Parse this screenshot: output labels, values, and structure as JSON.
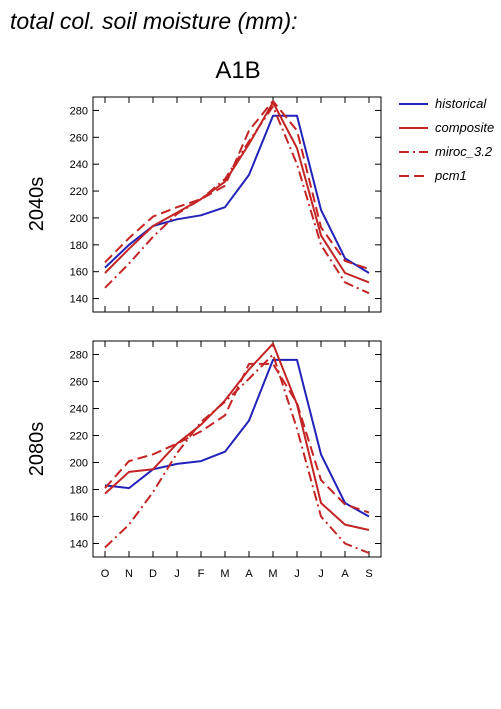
{
  "title": "total col. soil moisture (mm):",
  "scenario": "A1B",
  "colors": {
    "historical": "#2222bb",
    "composite": "#c42424",
    "miroc": "#c42424",
    "pcm1": "#c42424"
  },
  "legend": [
    {
      "key": "historical",
      "label": "historical",
      "dash": "solid"
    },
    {
      "key": "composite",
      "label": "composite",
      "dash": "solid"
    },
    {
      "key": "miroc",
      "label": "miroc_3.2",
      "dash": "dashdot"
    },
    {
      "key": "pcm1",
      "label": "pcm1",
      "dash": "dash"
    }
  ],
  "chart_data": [
    {
      "type": "line",
      "panel_label": "2040s",
      "categories": [
        "O",
        "N",
        "D",
        "J",
        "F",
        "M",
        "A",
        "M",
        "J",
        "J",
        "A",
        "S"
      ],
      "yticks": [
        140,
        160,
        180,
        200,
        220,
        240,
        260,
        280
      ],
      "ylim": [
        130,
        290
      ],
      "show_x_labels": false,
      "series": [
        {
          "key": "historical",
          "name": "historical",
          "dash": "solid",
          "values": [
            163,
            180,
            194,
            199,
            202,
            208,
            232,
            276,
            276,
            206,
            170,
            159
          ]
        },
        {
          "key": "composite",
          "name": "composite",
          "dash": "solid",
          "values": [
            159,
            177,
            194,
            204,
            214,
            227,
            255,
            286,
            252,
            187,
            159,
            152
          ]
        },
        {
          "key": "miroc",
          "name": "miroc_3.2",
          "dash": "dashdot",
          "values": [
            148,
            166,
            186,
            203,
            214,
            229,
            257,
            283,
            240,
            180,
            152,
            144
          ]
        },
        {
          "key": "pcm1",
          "name": "pcm1",
          "dash": "dash",
          "values": [
            167,
            185,
            201,
            208,
            214,
            224,
            265,
            287,
            265,
            193,
            168,
            162
          ]
        }
      ]
    },
    {
      "type": "line",
      "panel_label": "2080s",
      "categories": [
        "O",
        "N",
        "D",
        "J",
        "F",
        "M",
        "A",
        "M",
        "J",
        "J",
        "A",
        "S"
      ],
      "yticks": [
        140,
        160,
        180,
        200,
        220,
        240,
        260,
        280
      ],
      "ylim": [
        130,
        290
      ],
      "show_x_labels": true,
      "series": [
        {
          "key": "historical",
          "name": "historical",
          "dash": "solid",
          "values": [
            183,
            181,
            195,
            199,
            201,
            208,
            231,
            276,
            276,
            206,
            170,
            160
          ]
        },
        {
          "key": "composite",
          "name": "composite",
          "dash": "solid",
          "values": [
            177,
            193,
            195,
            214,
            228,
            246,
            269,
            288,
            243,
            170,
            154,
            150
          ]
        },
        {
          "key": "miroc",
          "name": "miroc_3.2",
          "dash": "dashdot",
          "values": [
            137,
            154,
            178,
            207,
            230,
            245,
            262,
            280,
            225,
            160,
            140,
            133
          ]
        },
        {
          "key": "pcm1",
          "name": "pcm1",
          "dash": "dash",
          "values": [
            181,
            201,
            206,
            214,
            223,
            235,
            273,
            273,
            244,
            187,
            169,
            163
          ]
        }
      ]
    }
  ]
}
